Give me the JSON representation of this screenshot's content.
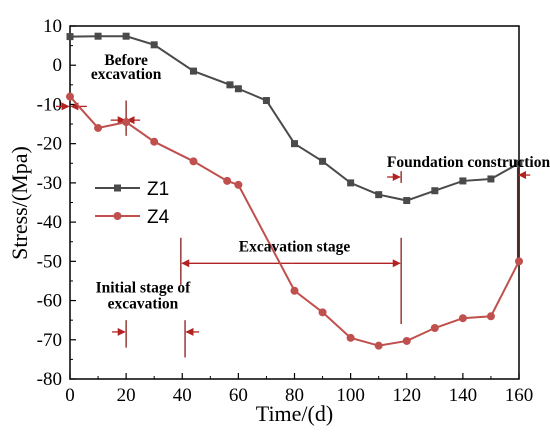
{
  "chart_data": {
    "type": "line",
    "xlabel": "Time/(d)",
    "ylabel": "Stress/(Mpa)",
    "xlim": [
      0,
      160
    ],
    "ylim": [
      -80,
      10
    ],
    "xticks": [
      0,
      20,
      40,
      60,
      80,
      100,
      120,
      140,
      160
    ],
    "yticks": [
      10,
      0,
      -10,
      -20,
      -30,
      -40,
      -50,
      -60,
      -70,
      -80
    ],
    "grid": false,
    "legend_placement": "center-left",
    "series": [
      {
        "name": "Z1",
        "color": "#4a4a4a",
        "marker": "square",
        "x": [
          0,
          10,
          20,
          30,
          44,
          57,
          60,
          70,
          80,
          90,
          100,
          110,
          120,
          130,
          140,
          150,
          160
        ],
        "y": [
          7.3,
          7.4,
          7.4,
          5.2,
          -1.5,
          -5,
          -6,
          -9,
          -20,
          -24.5,
          -30,
          -33,
          -34.5,
          -32,
          -29.5,
          -29,
          -25
        ]
      },
      {
        "name": "Z4",
        "color": "#c0504d",
        "marker": "circle",
        "x": [
          0,
          10,
          20,
          30,
          44,
          56,
          60,
          80,
          90,
          100,
          110,
          120,
          130,
          140,
          150,
          160
        ],
        "y": [
          -8,
          -16,
          -14.5,
          -19.5,
          -24.5,
          -29.5,
          -30.5,
          -57.5,
          -63,
          -69.5,
          -71.5,
          -70.3,
          -67,
          -64.5,
          -64,
          -50
        ]
      }
    ],
    "annotations": [
      {
        "text": "Before",
        "x": 20,
        "y": 0
      },
      {
        "text": "excavation",
        "x": 20,
        "y": -3.5
      },
      {
        "text": "Foundation construction",
        "x": 142,
        "y": -26
      },
      {
        "text": "Excavation stage",
        "x": 80,
        "y": -47.5
      },
      {
        "text": "Initial stage of",
        "x": 26,
        "y": -58
      },
      {
        "text": "excavation",
        "x": 26,
        "y": -62
      }
    ],
    "markers": [
      {
        "type": "vline",
        "x": 20,
        "y1": -18,
        "y2": -9
      },
      {
        "type": "arrow",
        "x1": 14.5,
        "x2": 19.5,
        "y": -14
      },
      {
        "type": "arrow",
        "x1": 25,
        "x2": 20.5,
        "y": -14
      },
      {
        "type": "arrow",
        "x1": -5,
        "x2": -0.5,
        "y": -10.5
      },
      {
        "type": "arrow",
        "x1": 6,
        "x2": 0.5,
        "y": -10.5
      },
      {
        "type": "vline",
        "x": 20,
        "y1": -72,
        "y2": -65
      },
      {
        "type": "arrow",
        "x1": 15,
        "x2": 19.5,
        "y": -68
      },
      {
        "type": "vline",
        "x": 41,
        "y1": -74.5,
        "y2": -65
      },
      {
        "type": "arrow",
        "x1": 46,
        "x2": 41.5,
        "y": -68
      },
      {
        "type": "vline",
        "x": 39.5,
        "y1": -56,
        "y2": -44
      },
      {
        "type": "vline",
        "x": 118,
        "y1": -66,
        "y2": -44
      },
      {
        "type": "arrow",
        "x1": 79,
        "x2": 40,
        "y": -50.5
      },
      {
        "type": "arrow",
        "x1": 79,
        "x2": 117.5,
        "y": -50.5
      },
      {
        "type": "vline",
        "x": 118,
        "y1": -30,
        "y2": -27
      },
      {
        "type": "arrow",
        "x1": 113,
        "x2": 117.5,
        "y": -28.5
      },
      {
        "type": "vline",
        "x": 159.5,
        "y1": -50,
        "y2": -26
      },
      {
        "type": "arrow",
        "x1": 164,
        "x2": 160,
        "y": -28
      }
    ]
  }
}
